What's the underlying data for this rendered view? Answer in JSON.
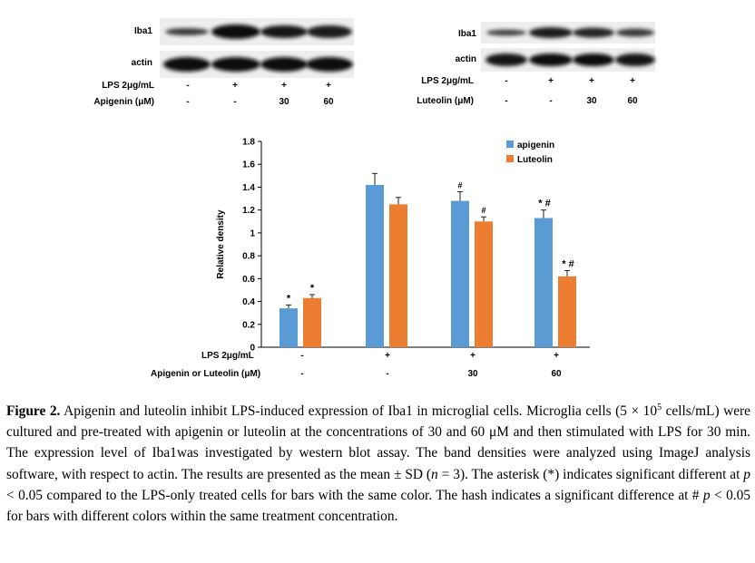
{
  "blot_left": {
    "labels": [
      "Iba1",
      "actin"
    ],
    "treatments": [
      {
        "name": "LPS 2μg/mL",
        "values": [
          "-",
          "+",
          "+",
          "+"
        ]
      },
      {
        "name": "Apigenin (μM)",
        "values": [
          "-",
          "-",
          "30",
          "60"
        ]
      }
    ]
  },
  "blot_right": {
    "labels": [
      "Iba1",
      "actin"
    ],
    "treatments": [
      {
        "name": "LPS 2μg/mL",
        "values": [
          "-",
          "+",
          "+",
          "+"
        ]
      },
      {
        "name": "Luteolin (μM)",
        "values": [
          "-",
          "-",
          "30",
          "60"
        ]
      }
    ]
  },
  "chart_data": {
    "type": "bar",
    "ylabel": "Relative density",
    "ylim": [
      0,
      1.8
    ],
    "yticks": [
      "0",
      "0.2",
      "0.4",
      "0.6",
      "0.8",
      "1",
      "1.2",
      "1.4",
      "1.6",
      "1.8"
    ],
    "legend_position": "top-right",
    "series": [
      {
        "name": "apigenin",
        "color": "#5b9bd5",
        "values": [
          0.34,
          1.42,
          1.28,
          1.13
        ],
        "errors": [
          0.03,
          0.1,
          0.08,
          0.07
        ],
        "annotations": [
          "*",
          "",
          "#",
          "*,#"
        ]
      },
      {
        "name": "Luteolin",
        "color": "#ed7d31",
        "values": [
          0.43,
          1.25,
          1.1,
          0.62
        ],
        "errors": [
          0.03,
          0.06,
          0.04,
          0.05
        ],
        "annotations": [
          "*",
          "",
          "#",
          "*,#"
        ]
      }
    ],
    "conditions": [
      {
        "name": "LPS 2μg/mL",
        "values": [
          "-",
          "+",
          "+",
          "+"
        ]
      },
      {
        "name": "Apigenin or Luteolin (μM)",
        "values": [
          "-",
          "-",
          "30",
          "60"
        ]
      }
    ]
  },
  "caption": {
    "label": "Figure 2.",
    "s1": "Apigenin and luteolin inhibit LPS-induced expression of Iba1 in microglial cells. Microglia cells (5 × 10",
    "exp": "5",
    "s2": " cells/mL) were cultured and pre-treated with apigenin or luteolin at the concentrations of 30 and 60 μM and then stimulated with LPS for 30 min. The expression level of Iba1was investigated by western blot assay. The band densities were analyzed using ImageJ analysis software, with respect to actin. The results are presented as the mean ± SD (",
    "n": "n",
    "s3": " = 3). The asterisk (*) indicates significant different at ",
    "p1": "p",
    "s4": " < 0.05 compared to the LPS-only treated cells for bars with the same color. The hash indicates a significant difference at # ",
    "p2": "p",
    "s5": " < 0.05 for bars with different colors within the same treatment concentration."
  }
}
